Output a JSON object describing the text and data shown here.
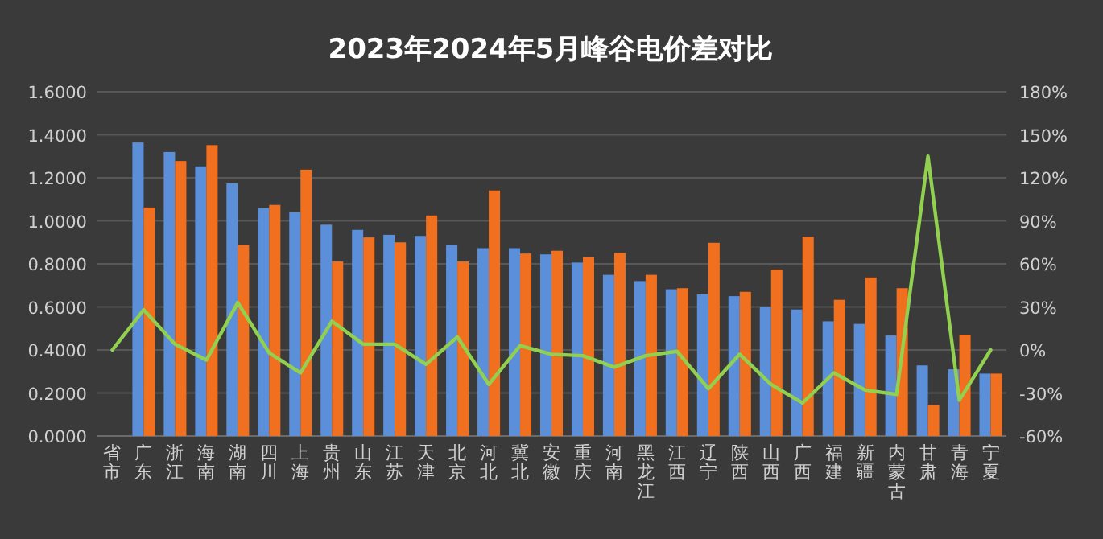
{
  "chart_data": {
    "type": "bar",
    "title": "2023年2024年5月峰谷电价差对比",
    "categories": [
      "省市",
      "广东",
      "浙江",
      "海南",
      "湖南",
      "四川",
      "上海",
      "贵州",
      "山东",
      "江苏",
      "天津",
      "北京",
      "河北",
      "冀北",
      "安徽",
      "重庆",
      "河南",
      "黑龙江",
      "江西",
      "辽宁",
      "陕西",
      "山西",
      "广西",
      "福建",
      "新疆",
      "内蒙古",
      "甘肃",
      "青海",
      "宁夏"
    ],
    "series": [
      {
        "color": "#5b8fd9",
        "values": [
          null,
          1.364,
          1.32,
          1.253,
          1.174,
          1.059,
          1.04,
          0.982,
          0.958,
          0.935,
          0.93,
          0.888,
          0.873,
          0.873,
          0.844,
          0.806,
          0.749,
          0.72,
          0.682,
          0.658,
          0.65,
          0.6,
          0.588,
          0.533,
          0.521,
          0.467,
          0.328,
          0.31,
          0.29
        ]
      },
      {
        "color": "#f07020",
        "values": [
          null,
          1.062,
          1.278,
          1.352,
          0.888,
          1.074,
          1.238,
          0.811,
          0.923,
          0.9,
          1.025,
          0.811,
          1.141,
          0.848,
          0.861,
          0.831,
          0.851,
          0.749,
          0.687,
          0.898,
          0.67,
          0.774,
          0.926,
          0.633,
          0.737,
          0.687,
          0.144,
          0.471,
          0.29
        ]
      },
      {
        "type": "line",
        "axis": "y2",
        "color": "#92d050",
        "values": [
          0,
          28,
          4,
          -7,
          33,
          -2,
          -16,
          20,
          4,
          4,
          -10,
          9,
          -24,
          3,
          -3,
          -4,
          -12,
          -4,
          -1,
          -27,
          -3,
          -24,
          -37,
          -16,
          -28,
          -31,
          135,
          -35,
          0
        ]
      }
    ],
    "ylim": [
      0,
      1.6
    ],
    "yticks": [
      {
        "value": 0,
        "label": "0.0000"
      },
      {
        "value": 0.2,
        "label": "0.2000"
      },
      {
        "value": 0.4,
        "label": "0.4000"
      },
      {
        "value": 0.6,
        "label": "0.6000"
      },
      {
        "value": 0.8,
        "label": "0.8000"
      },
      {
        "value": 1,
        "label": "1.0000"
      },
      {
        "value": 1.2,
        "label": "1.2000"
      },
      {
        "value": 1.4,
        "label": "1.4000"
      },
      {
        "value": 1.6,
        "label": "1.6000"
      }
    ],
    "y2lim": [
      -60,
      180
    ],
    "y2ticks": [
      {
        "value": -60,
        "label": "-60%"
      },
      {
        "value": -30,
        "label": "-30%"
      },
      {
        "value": 0,
        "label": "0%"
      },
      {
        "value": 30,
        "label": "30%"
      },
      {
        "value": 60,
        "label": "60%"
      },
      {
        "value": 90,
        "label": "90%"
      },
      {
        "value": 120,
        "label": "120%"
      },
      {
        "value": 150,
        "label": "150%"
      },
      {
        "value": 180,
        "label": "180%"
      }
    ],
    "grid": "y"
  }
}
